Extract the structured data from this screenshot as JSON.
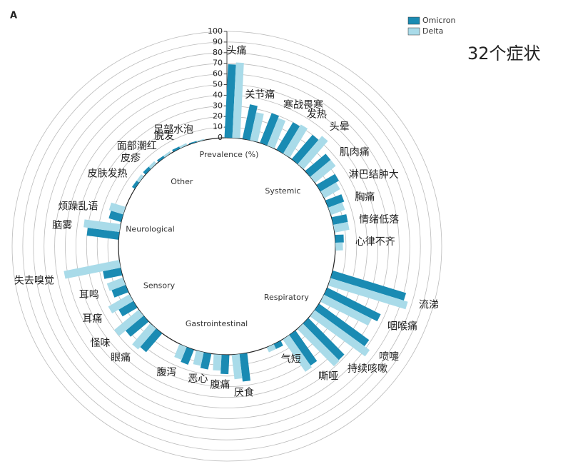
{
  "chart_data": {
    "type": "radial_bar",
    "panel_label": "A",
    "annotation": "32个症状",
    "axis_label": "Prevalence (%)",
    "groups": [
      {
        "name": "Systemic",
        "categories": [
          "头痛",
          "关节痛",
          "寒战畏寒",
          "发热",
          "头晕",
          "肌肉痛",
          "淋巴结肿大",
          "胸痛",
          "情绪低落",
          "心律不齐"
        ]
      },
      {
        "name": "Respiratory",
        "categories": [
          "流涕",
          "咽喉痛",
          "喷嚏",
          "持续咳嗽",
          "嘶哑",
          "气短"
        ]
      },
      {
        "name": "Gastrointestinal",
        "categories": [
          "厌食",
          "腹痛",
          "恶心",
          "腹泻"
        ]
      },
      {
        "name": "Sensory",
        "categories": [
          "眼痛",
          "怪味",
          "耳痛",
          "耳鸣",
          "失去嗅觉"
        ]
      },
      {
        "name": "Neurological",
        "categories": [
          "脑雾",
          "烦躁乱语"
        ]
      },
      {
        "name": "Other",
        "categories": [
          "皮肤发热",
          "皮疹",
          "面部潮红",
          "脱发",
          "足部水泡"
        ]
      }
    ],
    "series": [
      {
        "name": "Omicron",
        "color": "#1a8bb3",
        "values": [
          69,
          33,
          30,
          30,
          30,
          25,
          20,
          16,
          14,
          8,
          72,
          56,
          58,
          48,
          35,
          5,
          26,
          18,
          15,
          15,
          23,
          22,
          16,
          14,
          17,
          30,
          12,
          3,
          3,
          2,
          2,
          1
        ]
      },
      {
        "name": "Delta",
        "color": "#a9dbe9",
        "values": [
          71,
          27,
          28,
          32,
          35,
          25,
          17,
          14,
          14,
          7,
          76,
          50,
          64,
          49,
          37,
          5,
          23,
          15,
          13,
          13,
          26,
          30,
          23,
          16,
          53,
          34,
          14,
          3,
          3,
          2,
          2,
          1
        ]
      }
    ],
    "ylim": [
      0,
      100
    ],
    "yticks": [
      0,
      10,
      20,
      30,
      40,
      50,
      60,
      70,
      80,
      90,
      100
    ],
    "grid": true,
    "legend": "top-right"
  }
}
